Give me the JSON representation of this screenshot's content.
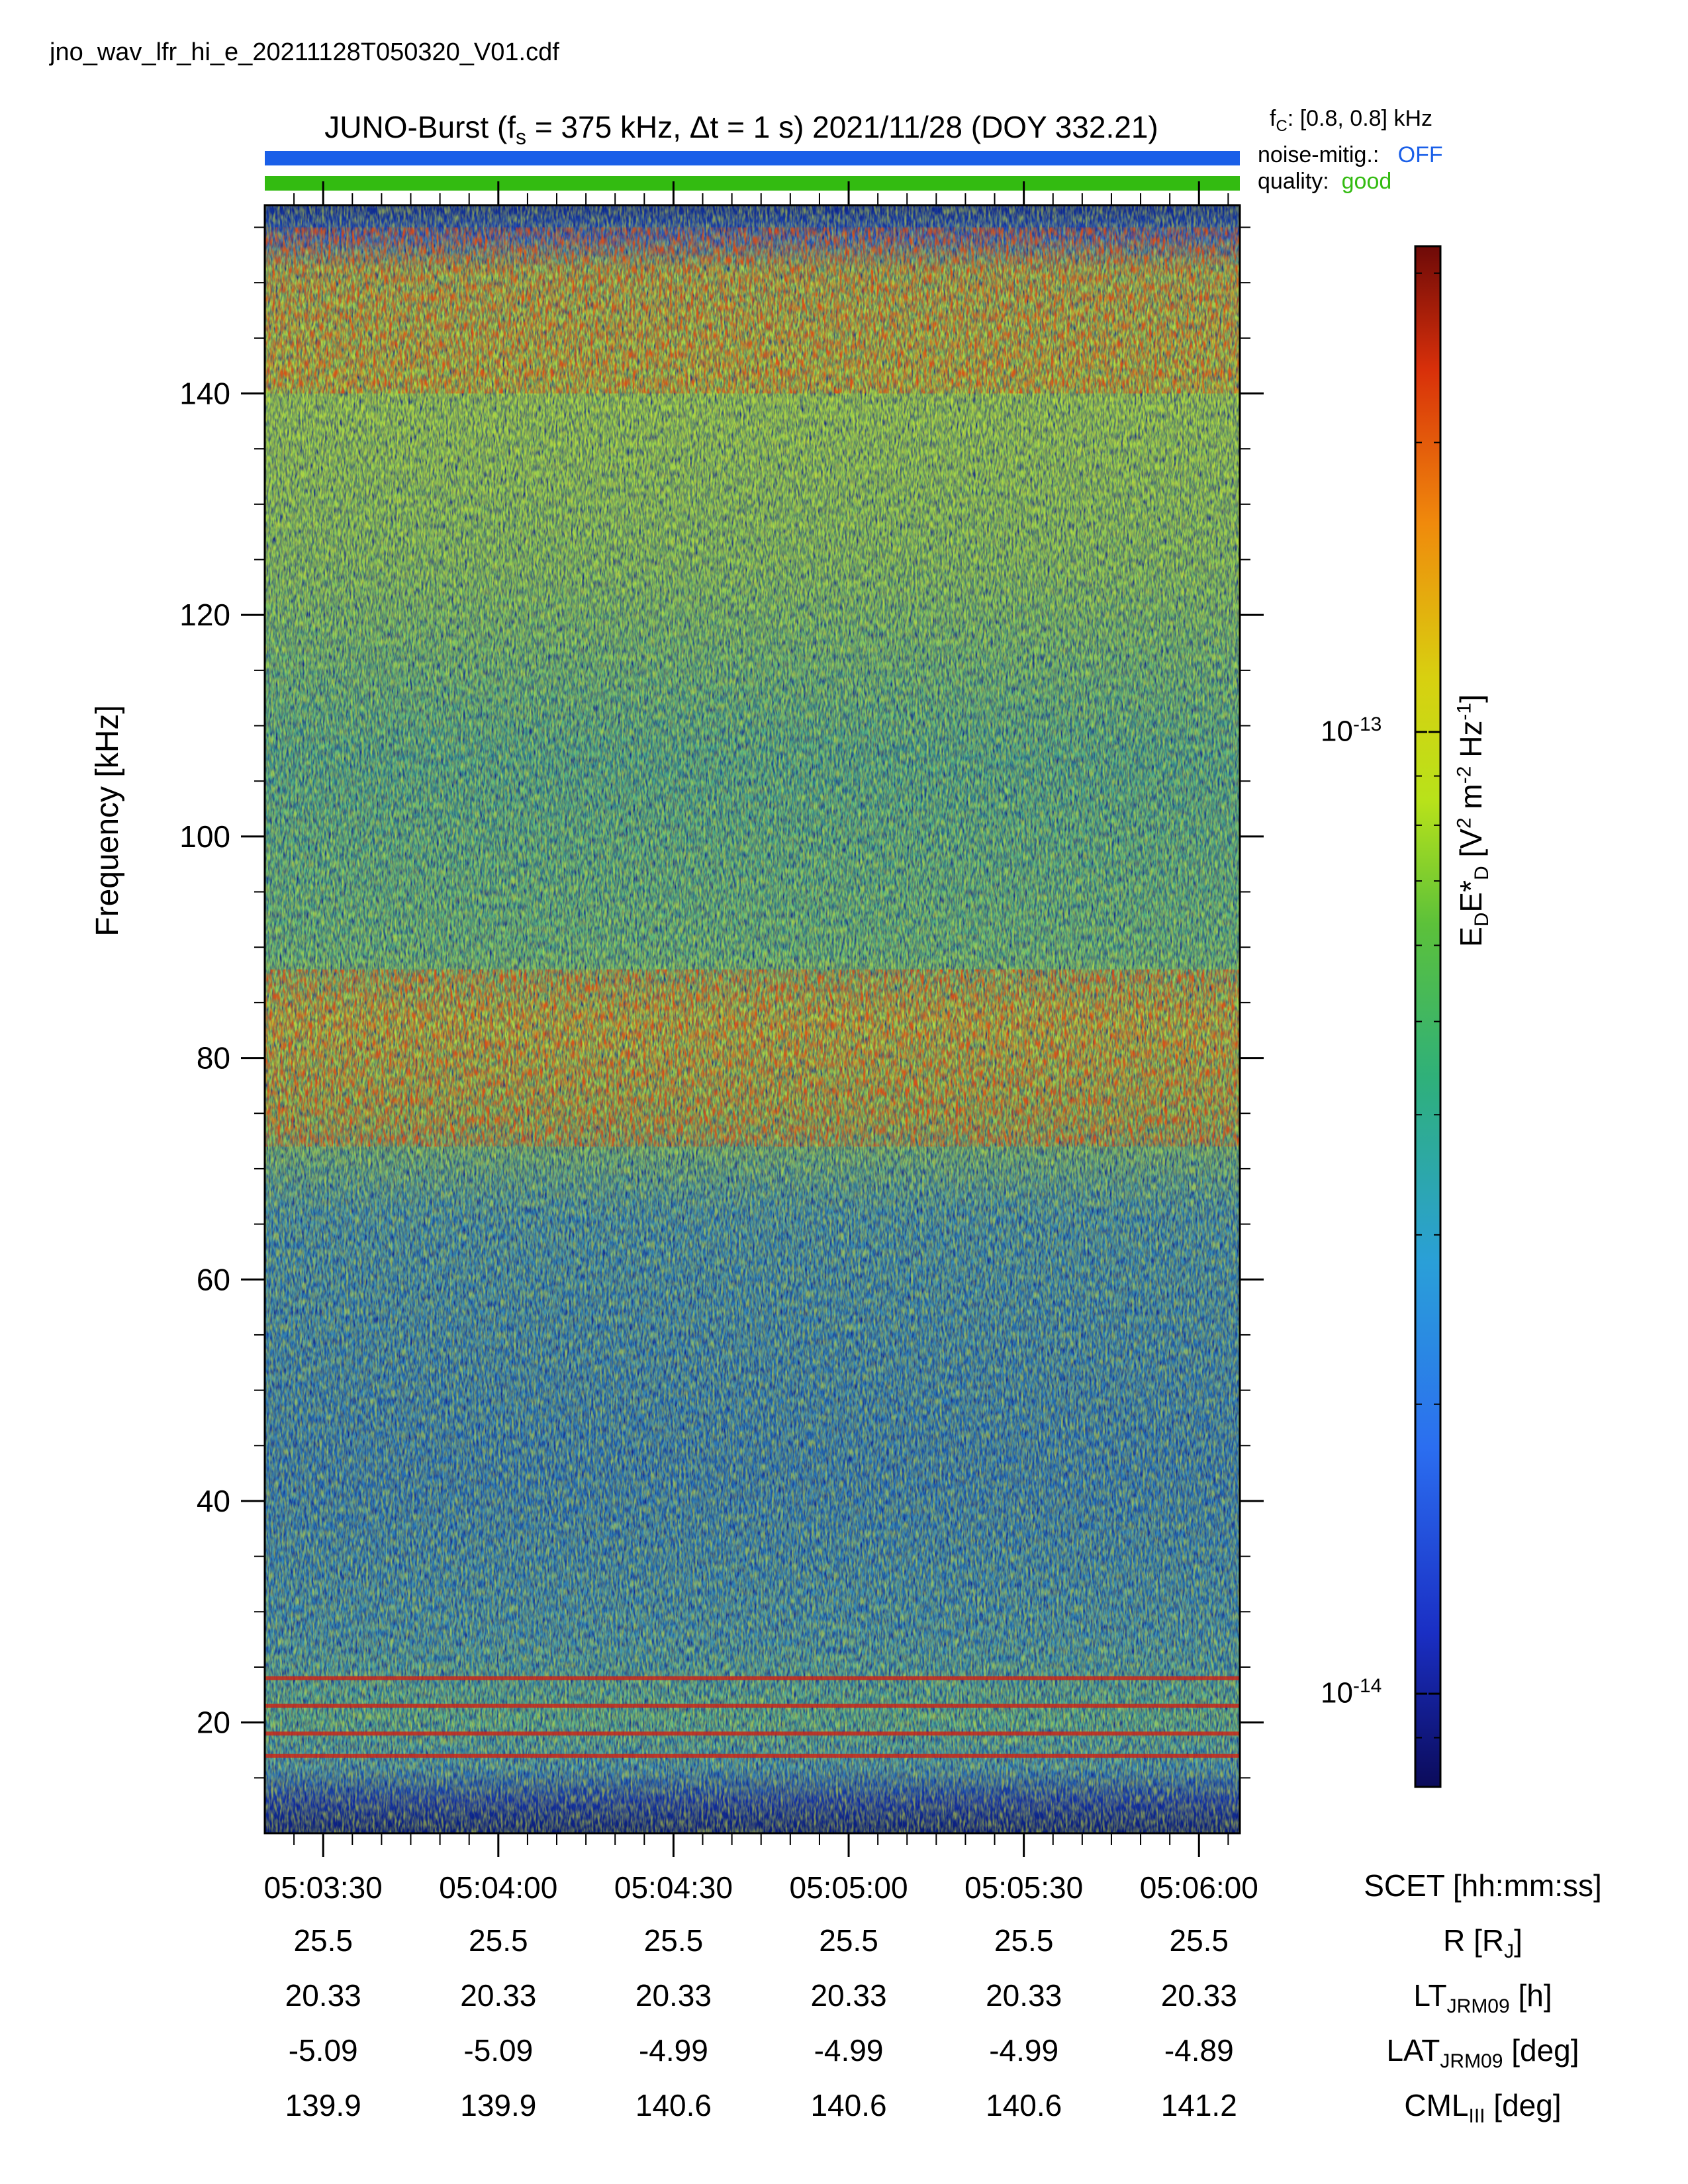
{
  "filename": "jno_wav_lfr_hi_e_20211128T050320_V01.cdf",
  "title": {
    "prefix": "JUNO-Burst (f",
    "sub": "s",
    "suffix": " = 375 kHz, Δt = 1 s)  2021/11/28 (DOY 332.21)"
  },
  "status": {
    "fc_label": "f",
    "fc_sub": "C",
    "fc_value": ": [0.8, 0.8] kHz",
    "noise_label": "noise-mitig.:",
    "noise_value": "OFF",
    "noise_color": "#1a5fe8",
    "quality_label": "quality:",
    "quality_value": "good",
    "quality_color": "#33bb11"
  },
  "chart_data": {
    "type": "heatmap",
    "ylabel": "Frequency [kHz]",
    "ylim": [
      10,
      157
    ],
    "yticks": [
      20,
      40,
      60,
      80,
      100,
      120,
      140
    ],
    "xlim": [
      "05:03:20",
      "05:06:07"
    ],
    "xticks": [
      "05:03:30",
      "05:04:00",
      "05:04:30",
      "05:05:00",
      "05:05:30",
      "05:06:00"
    ],
    "colorbar": {
      "label": "E_D E*_D [V^2 m^-2 Hz^-1]",
      "scale": "log",
      "range": [
        8e-15,
        3.2e-13
      ],
      "tick_labels": [
        {
          "value": 1e-13,
          "base": "10",
          "exp": "-13"
        },
        {
          "value": 1e-14,
          "base": "10",
          "exp": "-14"
        }
      ]
    },
    "features": [
      {
        "name": "",
        "freq_range": [
          140,
          155
        ],
        "level": "high"
      },
      {
        "name": "",
        "freq_range": [
          72,
          88
        ],
        "level": "high"
      },
      {
        "freq_lines": [
          24,
          21.5,
          19,
          17
        ],
        "level": "high"
      }
    ]
  },
  "ephemeris": {
    "scet_label": "SCET [hh:mm:ss]",
    "r_label": "R [R",
    "r_sub": "J",
    "r_end": "]",
    "lt_label": "LT",
    "lt_sub": "JRM09",
    "lt_end": " [h]",
    "lat_label": "LAT",
    "lat_sub": "JRM09",
    "lat_end": " [deg]",
    "cml_label": "CML",
    "cml_sub": "III",
    "cml_end": " [deg]",
    "r": [
      "25.5",
      "25.5",
      "25.5",
      "25.5",
      "25.5",
      "25.5"
    ],
    "lt": [
      "20.33",
      "20.33",
      "20.33",
      "20.33",
      "20.33",
      "20.33"
    ],
    "lat": [
      "-5.09",
      "-5.09",
      "-4.99",
      "-4.99",
      "-4.99",
      "-4.89"
    ],
    "cml": [
      "139.9",
      "139.9",
      "140.6",
      "140.6",
      "140.6",
      "141.2"
    ]
  }
}
